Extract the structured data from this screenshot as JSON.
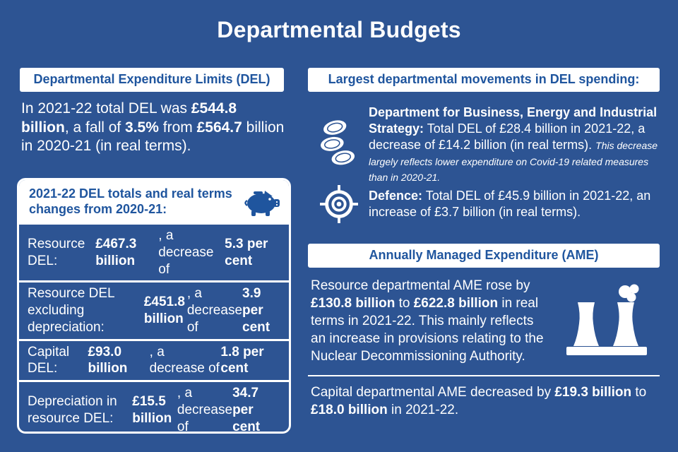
{
  "title": "Departmental Budgets",
  "colors": {
    "bg": "#2D5493",
    "accent": "#1F559E",
    "body-text": "#FFFFFF"
  },
  "left": {
    "del_header": "Departmental Expenditure Limits (DEL)",
    "intro": [
      {
        "t": "In 2021-22 total DEL was "
      },
      {
        "t": "£544.8 billion",
        "b": true
      },
      {
        "t": ", a fall of "
      },
      {
        "t": "3.5%",
        "b": true
      },
      {
        "t": " from "
      },
      {
        "t": "£564.7",
        "b": true
      },
      {
        "t": " billion in 2020-21 (in real terms)."
      }
    ],
    "panel": {
      "header": "2021-22 DEL totals and real terms changes from 2020-21:",
      "icon": "piggy-bank-icon",
      "rows": [
        [
          {
            "t": "Resource DEL: "
          },
          {
            "t": "£467.3 billion",
            "b": true
          },
          {
            "t": ", a decrease of "
          },
          {
            "t": "5.3 per cent",
            "b": true
          }
        ],
        [
          {
            "t": "Resource DEL excluding depreciation: "
          },
          {
            "t": "£451.8 billion",
            "b": true
          },
          {
            "t": ", a decrease of "
          },
          {
            "t": "3.9 per cent",
            "b": true
          }
        ],
        [
          {
            "t": "Capital DEL: "
          },
          {
            "t": "£93.0 billion",
            "b": true
          },
          {
            "t": ", a decrease of "
          },
          {
            "t": "1.8 per cent",
            "b": true
          }
        ],
        [
          {
            "t": "Depreciation in resource DEL: "
          },
          {
            "t": "£15.5 billion",
            "b": true
          },
          {
            "t": ", a decrease of "
          },
          {
            "t": "34.7 per cent",
            "b": true
          }
        ]
      ]
    }
  },
  "right": {
    "movements_header": "Largest departmental movements in DEL spending:",
    "beis": {
      "icon": "coin-stack-icon",
      "text": [
        {
          "t": "Department for Business, Energy and Industrial Strategy:",
          "b": true
        },
        {
          "t": " Total DEL of £28.4 billion in 2021-22, a decrease of £14.2 billion (in real terms). "
        },
        {
          "t": "This decrease largely reflects lower expenditure on Covid-19 related measures than in 2020-21.",
          "i": true,
          "small": true
        }
      ]
    },
    "defence": {
      "icon": "target-icon",
      "text": [
        {
          "t": "Defence:",
          "b": true
        },
        {
          "t": " Total DEL of £45.9 billion in 2021-22, an increase of £3.7 billion (in real terms)."
        }
      ]
    },
    "ame_header": "Annually Managed Expenditure (AME)",
    "ame_icon": "cooling-towers-icon",
    "ame_resource": [
      {
        "t": "Resource departmental AME rose by "
      },
      {
        "t": "£130.8 billion",
        "b": true
      },
      {
        "t": " to "
      },
      {
        "t": "£622.8 billion",
        "b": true
      },
      {
        "t": " in real terms in 2021-22. This mainly reflects an increase in provisions relating to the Nuclear Decommissioning Authority."
      }
    ],
    "ame_capital": [
      {
        "t": "Capital departmental AME decreased by "
      },
      {
        "t": "£19.3 billion",
        "b": true
      },
      {
        "t": " to "
      },
      {
        "t": "£18.0 billion",
        "b": true
      },
      {
        "t": " in 2021-22."
      }
    ]
  }
}
